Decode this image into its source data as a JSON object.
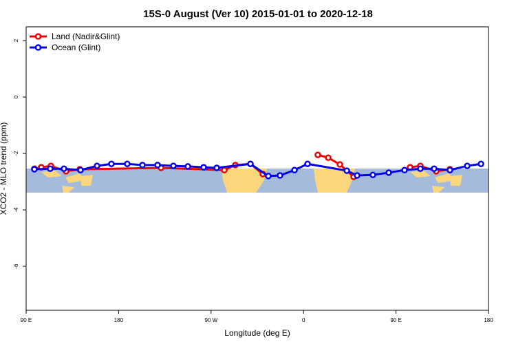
{
  "chart_data": {
    "type": "line",
    "title": "15S-0 August (Ver 10)   2015-01-01 to 2020-12-18",
    "x_label": "Longitude (deg E)",
    "y_label": "XCO2 - MLO trend (ppm)",
    "xlim": [
      90,
      540
    ],
    "ylim": [
      -7.56,
      2.49
    ],
    "xticks": [
      {
        "value": 90,
        "label": "90 E"
      },
      {
        "value": 180,
        "label": "180"
      },
      {
        "value": 270,
        "label": "90 W"
      },
      {
        "value": 360,
        "label": "0"
      },
      {
        "value": 450,
        "label": "90 E"
      },
      {
        "value": 540,
        "label": "180"
      }
    ],
    "yticks": [
      2,
      0,
      -2,
      -4,
      -6
    ],
    "legend": "top-left",
    "series": [
      {
        "name": "Land (Nadir&Glint)",
        "color": "#ee0000",
        "x": [
          98.0,
          104.7,
          114.1,
          128.8,
          142.2,
          221.3,
          282.9,
          293.6,
          308.3,
          320.4,
          null,
          373.9,
          384.0,
          395.4,
          408.8,
          null,
          463.7,
          473.7,
          489.1,
          502.5
        ],
        "values": [
          -2.54,
          -2.49,
          -2.44,
          -2.63,
          -2.56,
          -2.51,
          -2.59,
          -2.41,
          -2.37,
          -2.73,
          null,
          -2.05,
          -2.15,
          -2.39,
          -2.83,
          null,
          -2.49,
          -2.44,
          -2.63,
          -2.56
        ]
      },
      {
        "name": "Ocean (Glint)",
        "color": "#0000ee",
        "x": [
          98.0,
          113.4,
          126.8,
          142.9,
          159.0,
          173.0,
          188.4,
          203.2,
          217.9,
          233.3,
          247.4,
          262.8,
          275.5,
          308.3,
          325.7,
          337.1,
          351.2,
          363.9,
          402.1,
          412.1,
          427.5,
          442.9,
          458.3,
          473.7,
          487.1,
          502.5,
          519.3,
          532.7
        ],
        "values": [
          -2.56,
          -2.54,
          -2.54,
          -2.59,
          -2.44,
          -2.37,
          -2.37,
          -2.41,
          -2.41,
          -2.44,
          -2.46,
          -2.49,
          -2.51,
          -2.37,
          -2.8,
          -2.78,
          -2.59,
          -2.37,
          -2.61,
          -2.78,
          -2.76,
          -2.68,
          -2.59,
          -2.54,
          -2.54,
          -2.59,
          -2.44,
          -2.37
        ]
      }
    ]
  }
}
